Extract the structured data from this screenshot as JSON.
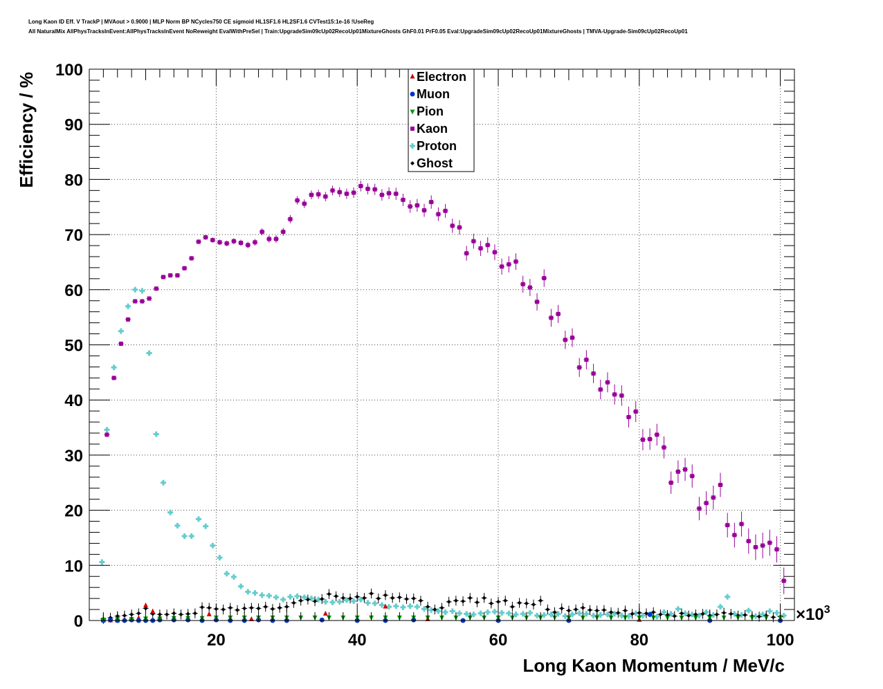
{
  "header": {
    "title_line1": "Long Kaon ID Eff. V TrackP | MVAout > 0.9000 | MLP Norm BP NCycles750 CE sigmoid HL1SF1.6 HL2SF1.6 CVTest15:1e-16 !UseReg",
    "title_line2": "All NaturalMix AllPhysTracksInEvent:AllPhysTracksInEvent NoReweight EvalWithPreSel | Train:UpgradeSim09cUp02RecoUp01MixtureGhosts GhF0.01 PrF0.05 Eval:UpgradeSim09cUp02RecoUp01MixtureGhosts | TMVA-Upgrade-Sim09cUp02RecoUp01"
  },
  "chart_data": {
    "type": "scatter",
    "xlabel": "Long Kaon Momentum / MeV/c",
    "ylabel": "Efficiency / %",
    "x_multiplier_label": "×10",
    "x_multiplier_exp": "3",
    "xlim": [
      2,
      102
    ],
    "ylim": [
      0,
      100
    ],
    "x_ticks": [
      20,
      40,
      60,
      80,
      100
    ],
    "y_ticks": [
      0,
      10,
      20,
      30,
      40,
      50,
      60,
      70,
      80,
      90,
      100
    ],
    "grid": true,
    "legend_position": "top-center",
    "series": [
      {
        "name": "Electron",
        "color": "#cc0000",
        "marker": "triangle-up",
        "x": [
          4,
          5,
          6,
          7,
          8,
          9,
          10,
          11,
          12,
          14,
          16,
          18,
          19,
          20,
          25,
          30,
          35.5,
          40,
          44,
          48,
          50,
          60,
          70,
          80,
          90,
          100
        ],
        "y": [
          0,
          0,
          0,
          0.1,
          0.2,
          0.4,
          2.7,
          1.6,
          0.5,
          0.3,
          0.2,
          0.3,
          1.1,
          0.3,
          0.2,
          0.2,
          1.2,
          0.2,
          2.5,
          0.3,
          0.2,
          0.1,
          0.1,
          0.1,
          0.1,
          0.1
        ]
      },
      {
        "name": "Muon",
        "color": "#0033cc",
        "marker": "circle",
        "x": [
          4,
          5,
          6,
          7,
          8,
          9,
          10,
          11,
          12,
          14,
          16,
          18,
          20,
          22,
          24,
          26,
          28,
          30,
          35,
          40,
          44,
          48,
          55,
          60,
          70,
          81.5,
          90,
          100
        ],
        "y": [
          0,
          0.1,
          0,
          0,
          0.1,
          0,
          0,
          0,
          0.1,
          0.1,
          0.1,
          0,
          0.1,
          0,
          0,
          0.1,
          0,
          0,
          0.1,
          0,
          0,
          0.1,
          0,
          0,
          0,
          1.1,
          0,
          0
        ]
      },
      {
        "name": "Pion",
        "color": "#009900",
        "marker": "triangle-down",
        "x": [
          4,
          6,
          8,
          10,
          12,
          14,
          16,
          18,
          20,
          22,
          24,
          26,
          28,
          30,
          32,
          34,
          36,
          38,
          40,
          42,
          44,
          46,
          48,
          50,
          52,
          54,
          56,
          58,
          60,
          62,
          64,
          66,
          68,
          70,
          72,
          74,
          76,
          78,
          80,
          82,
          84,
          86,
          88,
          90,
          92,
          94,
          96,
          98,
          100
        ],
        "y": [
          0.2,
          0.3,
          0.3,
          0.4,
          0.4,
          0.5,
          0.5,
          0.5,
          0.6,
          0.6,
          0.6,
          0.6,
          0.6,
          0.6,
          0.6,
          0.6,
          0.6,
          0.6,
          0.6,
          0.6,
          0.6,
          0.6,
          0.6,
          0.6,
          0.6,
          0.6,
          0.6,
          0.6,
          0.6,
          0.6,
          0.6,
          0.6,
          0.6,
          0.6,
          0.6,
          0.6,
          0.6,
          0.6,
          0.6,
          0.6,
          0.6,
          0.6,
          0.6,
          0.6,
          0.6,
          0.6,
          0.6,
          0.6,
          0.6
        ]
      },
      {
        "name": "Kaon",
        "color": "#990099",
        "marker": "square",
        "x": [
          4.5,
          5.5,
          6.5,
          7.5,
          8.5,
          9.5,
          10.5,
          11.5,
          12.5,
          13.5,
          14.5,
          15.5,
          16.5,
          17.5,
          18.5,
          19.5,
          20.5,
          21.5,
          22.5,
          23.5,
          24.5,
          25.5,
          26.5,
          27.5,
          28.5,
          29.5,
          30.5,
          31.5,
          32.5,
          33.5,
          34.5,
          35.5,
          36.5,
          37.5,
          38.5,
          39.5,
          40.5,
          41.5,
          42.5,
          43.5,
          44.5,
          45.5,
          46.5,
          47.5,
          48.5,
          49.5,
          50.5,
          51.5,
          52.5,
          53.5,
          54.5,
          55.5,
          56.5,
          57.5,
          58.5,
          59.5,
          60.5,
          61.5,
          62.5,
          63.5,
          64.5,
          65.5,
          66.5,
          67.5,
          68.5,
          69.5,
          70.5,
          71.5,
          72.5,
          73.5,
          74.5,
          75.5,
          76.5,
          77.5,
          78.5,
          79.5,
          80.5,
          81.5,
          82.5,
          83.5,
          84.5,
          85.5,
          86.5,
          87.5,
          88.5,
          89.5,
          90.5,
          91.5,
          92.5,
          93.5,
          94.5,
          95.5,
          96.5,
          97.5,
          98.5,
          99.5,
          100.5
        ],
        "y": [
          33.7,
          44,
          50.2,
          54.6,
          57.9,
          57.9,
          58.4,
          60.2,
          62.3,
          62.6,
          62.6,
          63.9,
          65.7,
          68.7,
          69.5,
          69,
          68.6,
          68.4,
          68.8,
          68.5,
          68.1,
          68.6,
          70.5,
          69.2,
          69.2,
          70.5,
          72.8,
          76.2,
          75.6,
          77.2,
          77.3,
          76.9,
          78,
          77.7,
          77.4,
          77.6,
          78.8,
          78.3,
          78.2,
          77.2,
          77.5,
          77.4,
          76.3,
          75.1,
          75.3,
          74.4,
          75.9,
          73.7,
          74.3,
          71.6,
          71.3,
          66.6,
          68.8,
          67.5,
          68.1,
          66.8,
          64.2,
          64.6,
          65.1,
          61,
          60.4,
          57.8,
          62.1,
          54.9,
          55.6,
          50.9,
          51.3,
          45.9,
          47.3,
          44.8,
          41.9,
          43.2,
          41,
          40.8,
          36.9,
          37.9,
          32.8,
          32.9,
          33.7,
          31.4,
          25,
          27,
          27.4,
          26.2,
          20.3,
          21.3,
          22.3,
          24.6,
          17.3,
          15.5,
          17.5,
          14.4,
          13.3,
          13.6,
          14.1,
          12.9,
          7.2
        ]
      },
      {
        "name": "Proton",
        "color": "#66cccc",
        "marker": "cross",
        "x": [
          3.8,
          4.5,
          5.5,
          6.5,
          7.5,
          8.5,
          9.5,
          10.5,
          11.5,
          12.5,
          13.5,
          14.5,
          15.5,
          16.5,
          17.5,
          18.5,
          19.5,
          20.5,
          21.5,
          22.5,
          23.5,
          24.5,
          25.5,
          26.5,
          27.5,
          28.5,
          29.5,
          30.5,
          31.5,
          32.5,
          33.5,
          34.5,
          35.5,
          36.5,
          37.5,
          38.5,
          39.5,
          40.5,
          41.5,
          42.5,
          43.5,
          44.5,
          45.5,
          46.5,
          47.5,
          48.5,
          49.5,
          50.5,
          51.5,
          52.5,
          53.5,
          54.5,
          55.5,
          56.5,
          57.5,
          58.5,
          59.5,
          60.5,
          61.5,
          62.5,
          63.5,
          64.5,
          65.5,
          66.5,
          67.5,
          68.5,
          69.5,
          70.5,
          71.5,
          72.5,
          73.5,
          74.5,
          75.5,
          76.5,
          77.5,
          78.5,
          79.5,
          80.5,
          81.5,
          82.5,
          83.5,
          84.5,
          85.5,
          86.5,
          87.5,
          88.5,
          89.5,
          90.5,
          91.5,
          92.5,
          93.5,
          94.5,
          95.5,
          96.5,
          97.5,
          98.5,
          99.5,
          100.5
        ],
        "y": [
          10.6,
          34.6,
          45.9,
          52.5,
          57,
          60,
          59.8,
          48.5,
          33.8,
          25,
          19.6,
          17.2,
          15.3,
          15.3,
          18.4,
          17.1,
          13.6,
          11.4,
          8.5,
          7.9,
          6.2,
          5.2,
          5,
          4.6,
          4.5,
          4.2,
          3.8,
          4.3,
          4.4,
          4.2,
          4,
          3.8,
          3.4,
          3.3,
          3.4,
          3.7,
          3.5,
          3.8,
          3.2,
          3.1,
          2.8,
          2.5,
          2.6,
          2.4,
          2.6,
          2.5,
          2.1,
          1.9,
          1.7,
          1.5,
          1.7,
          1.3,
          1.2,
          1.1,
          1.3,
          1.5,
          1.6,
          1.4,
          1.3,
          1.1,
          1.2,
          1.4,
          0.9,
          1,
          1.1,
          1.2,
          0.8,
          1.1,
          1.3,
          1.2,
          0.9,
          1,
          1.1,
          1.2,
          0.9,
          0.8,
          1.3,
          0.9,
          1.1,
          0.7,
          1.5,
          1.2,
          2.1,
          1.3,
          1.1,
          0.9,
          1.5,
          1,
          2.5,
          4.3,
          1.2,
          1,
          1.8,
          0.8,
          1.1,
          1.7,
          1.4,
          0.9
        ]
      },
      {
        "name": "Ghost",
        "color": "#000000",
        "marker": "diamond",
        "x": [
          4,
          5,
          6,
          7,
          8,
          9,
          10,
          11,
          12,
          13,
          14,
          15,
          16,
          17,
          18,
          19,
          20,
          21,
          22,
          23,
          24,
          25,
          26,
          27,
          28,
          29,
          30,
          31,
          32,
          33,
          34,
          35,
          36,
          37,
          38,
          39,
          40,
          41,
          42,
          43,
          44,
          45,
          46,
          47,
          48,
          49,
          50,
          51,
          52,
          53,
          54,
          55,
          56,
          57,
          58,
          59,
          60,
          61,
          62,
          63,
          64,
          65,
          66,
          67,
          68,
          69,
          70,
          71,
          72,
          73,
          74,
          75,
          76,
          77,
          78,
          79,
          80,
          81,
          82,
          83,
          84,
          85,
          86,
          87,
          88,
          89,
          90,
          91,
          92,
          93,
          94,
          95,
          96,
          97,
          98,
          99,
          100
        ],
        "y": [
          0.3,
          0.5,
          0.8,
          0.9,
          1.1,
          1.3,
          2.2,
          1.2,
          1.1,
          1.1,
          1.3,
          1.1,
          1.2,
          1.3,
          2.4,
          2.3,
          2.1,
          2,
          2.3,
          1.9,
          2.2,
          2.3,
          2.2,
          2.5,
          2.1,
          2.3,
          2.5,
          3.2,
          3.6,
          3.8,
          3.5,
          3.9,
          4.8,
          4.4,
          4.1,
          4.0,
          4.3,
          4.1,
          4.9,
          4.0,
          4.6,
          4.1,
          4.2,
          3.9,
          4.0,
          3.6,
          2.5,
          2.0,
          2.3,
          3.4,
          3.6,
          3.5,
          4.1,
          3.3,
          4.1,
          3.1,
          3.4,
          3.6,
          2.5,
          3.2,
          3.1,
          2.9,
          3.6,
          2.0,
          1.5,
          2.2,
          1.8,
          2.0,
          2.3,
          1.9,
          1.8,
          1.9,
          1.5,
          1.4,
          1.8,
          1.2,
          1.4,
          1.3,
          1.5,
          1.1,
          1.0,
          0.8,
          1.3,
          0.9,
          1.1,
          1.2,
          0.9,
          1.1,
          1.4,
          1.2,
          0.9,
          1.0,
          0.8,
          0.7,
          0.9,
          0.6,
          0.7
        ]
      }
    ]
  }
}
